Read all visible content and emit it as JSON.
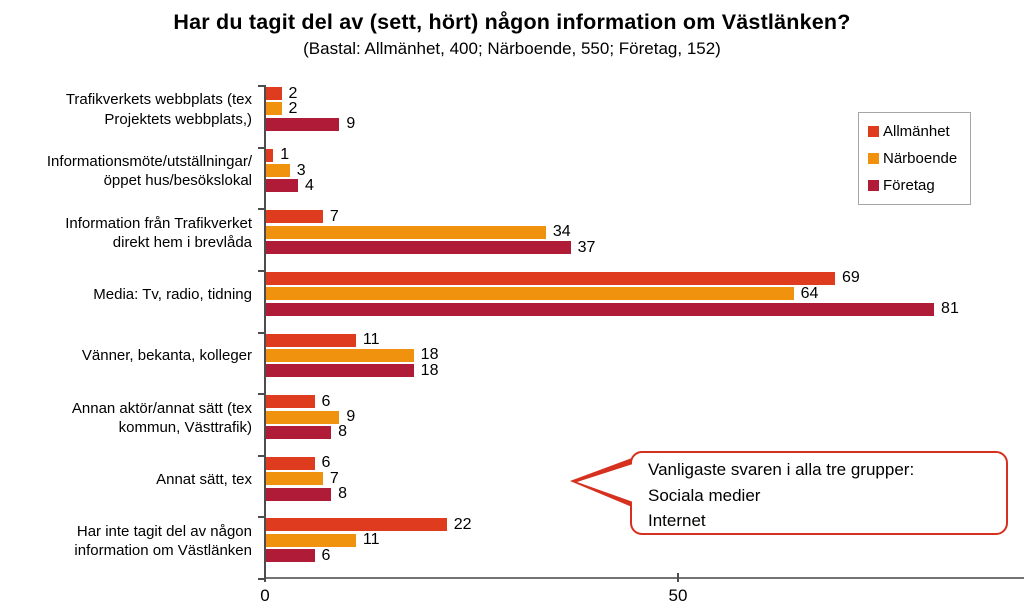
{
  "title": "Har du tagit del av (sett, hört) någon information om Västlänken?",
  "subtitle": "(Bastal: Allmänhet, 400; Närboende, 550; Företag, 152)",
  "x_axis": {
    "tick_labels": [
      "0",
      "50"
    ],
    "tick_values": [
      0,
      50
    ]
  },
  "callout": {
    "line1": "Vanligaste svaren i alla tre grupper:",
    "line2": "Sociala medier",
    "line3": "Internet",
    "border_color": "#d6301f"
  },
  "chart_data": {
    "type": "bar",
    "orientation": "horizontal",
    "title": "Har du tagit del av (sett, hört) någon information om Västlänken?",
    "subtitle": "(Bastal: Allmänhet, 400; Närboende, 550; Företag, 152)",
    "categories": [
      "Trafikverkets webbplats (tex\nProjektets webbplats,)",
      "Informationsmöte/utställningar/\nöppet hus/besökslokal",
      "Information från Trafikverket\ndirekt hem i brevlåda",
      "Media: Tv, radio, tidning",
      "Vänner, bekanta, kolleger",
      "Annan aktör/annat sätt (tex\nkommun, Västtrafik)",
      "Annat sätt, tex",
      "Har inte tagit del av någon\ninformation om Västlänken"
    ],
    "series": [
      {
        "name": "Allmänhet",
        "color": "#df3b1e",
        "values": [
          2,
          1,
          7,
          69,
          11,
          6,
          6,
          22
        ]
      },
      {
        "name": "Närboende",
        "color": "#f0920e",
        "values": [
          2,
          3,
          34,
          64,
          18,
          9,
          7,
          11
        ]
      },
      {
        "name": "Företag",
        "color": "#b01c38",
        "values": [
          9,
          4,
          37,
          81,
          18,
          8,
          8,
          6
        ]
      }
    ],
    "xlabel": "",
    "ylabel": "",
    "xlim": [
      0,
      92
    ],
    "xticks": [
      0,
      50
    ],
    "grid": false,
    "legend_position": "top-right",
    "bar_value_labels": true
  }
}
